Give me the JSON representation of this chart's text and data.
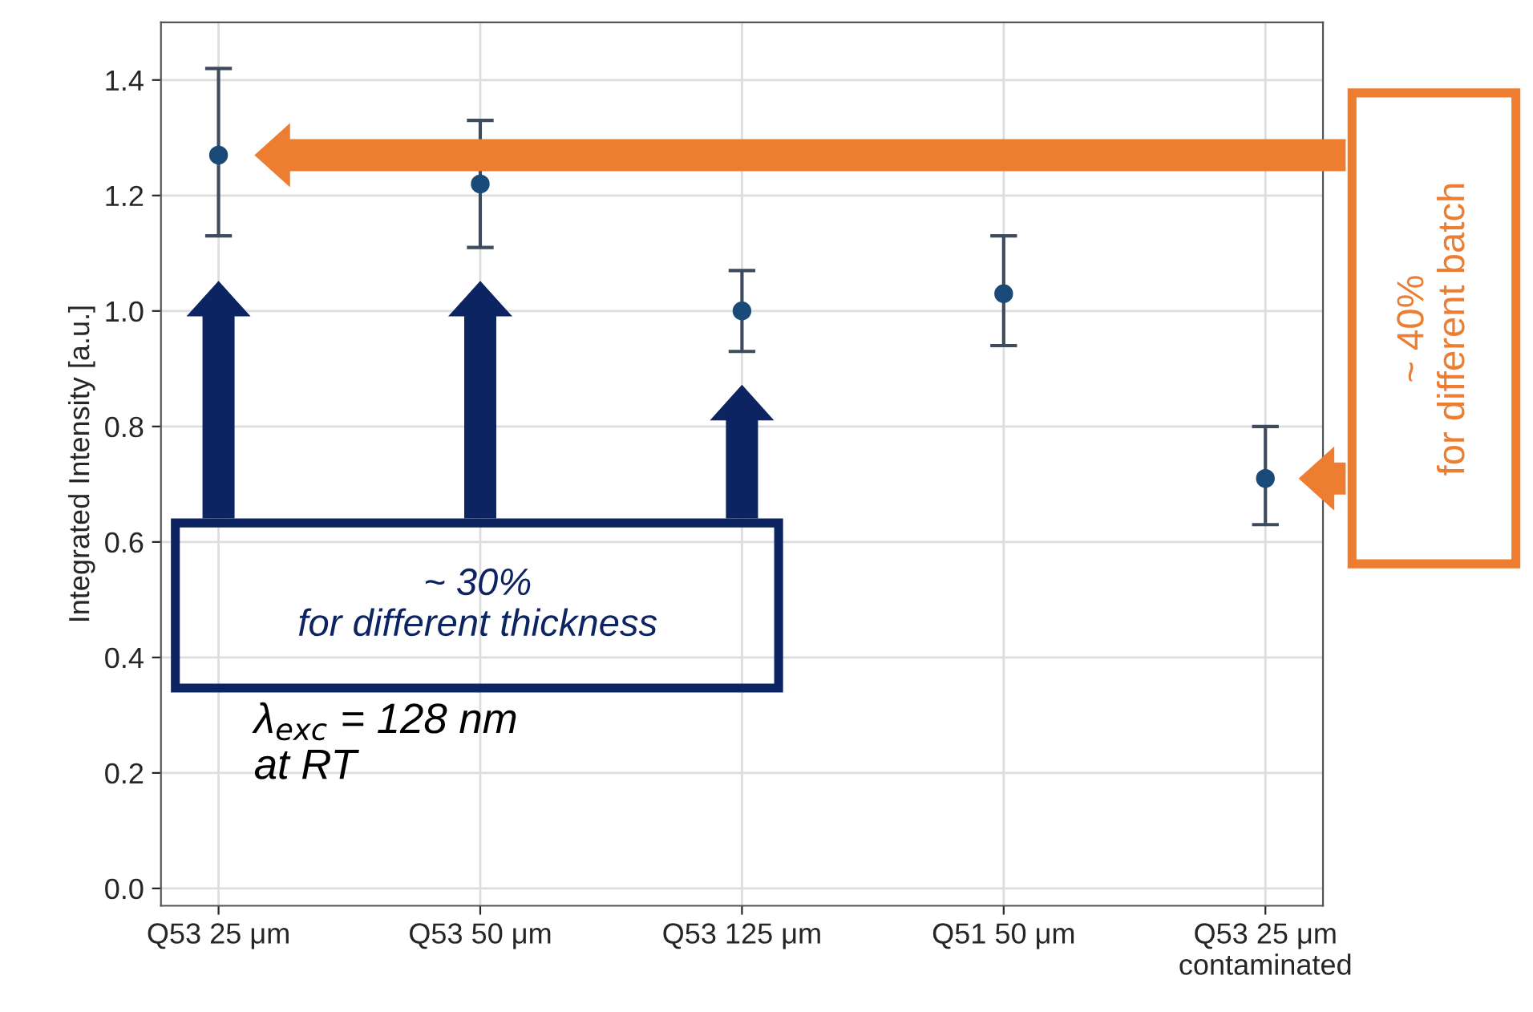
{
  "chart_data": {
    "type": "scatter",
    "ylabel": "Integrated Intensity [a.u.]",
    "categories": [
      "Q53 25 μm",
      "Q53 50 μm",
      "Q53 125 μm",
      "Q51 50 μm",
      "Q53 25 μm\ncontaminated"
    ],
    "series": [
      {
        "color": "#1a4a78",
        "values": [
          1.27,
          1.22,
          1.0,
          1.03,
          0.71
        ],
        "errors": [
          [
            1.13,
            1.42
          ],
          [
            1.11,
            1.33
          ],
          [
            0.93,
            1.07
          ],
          [
            0.94,
            1.13
          ],
          [
            0.63,
            0.8
          ]
        ]
      }
    ],
    "ylim": [
      -0.03,
      1.5
    ],
    "yticks": [
      {
        "value": 0,
        "label": "0.0"
      },
      0.2,
      0.4,
      0.6,
      0.8,
      {
        "value": 1,
        "label": "1.0"
      },
      1.2,
      1.4
    ],
    "grid": true,
    "marker": "circle",
    "annotations": [
      "~ 30%\nfor different thickness",
      "~ 40%\nfor different batch",
      "λ$_{exc}$ = 128 nm\nat RT"
    ]
  }
}
